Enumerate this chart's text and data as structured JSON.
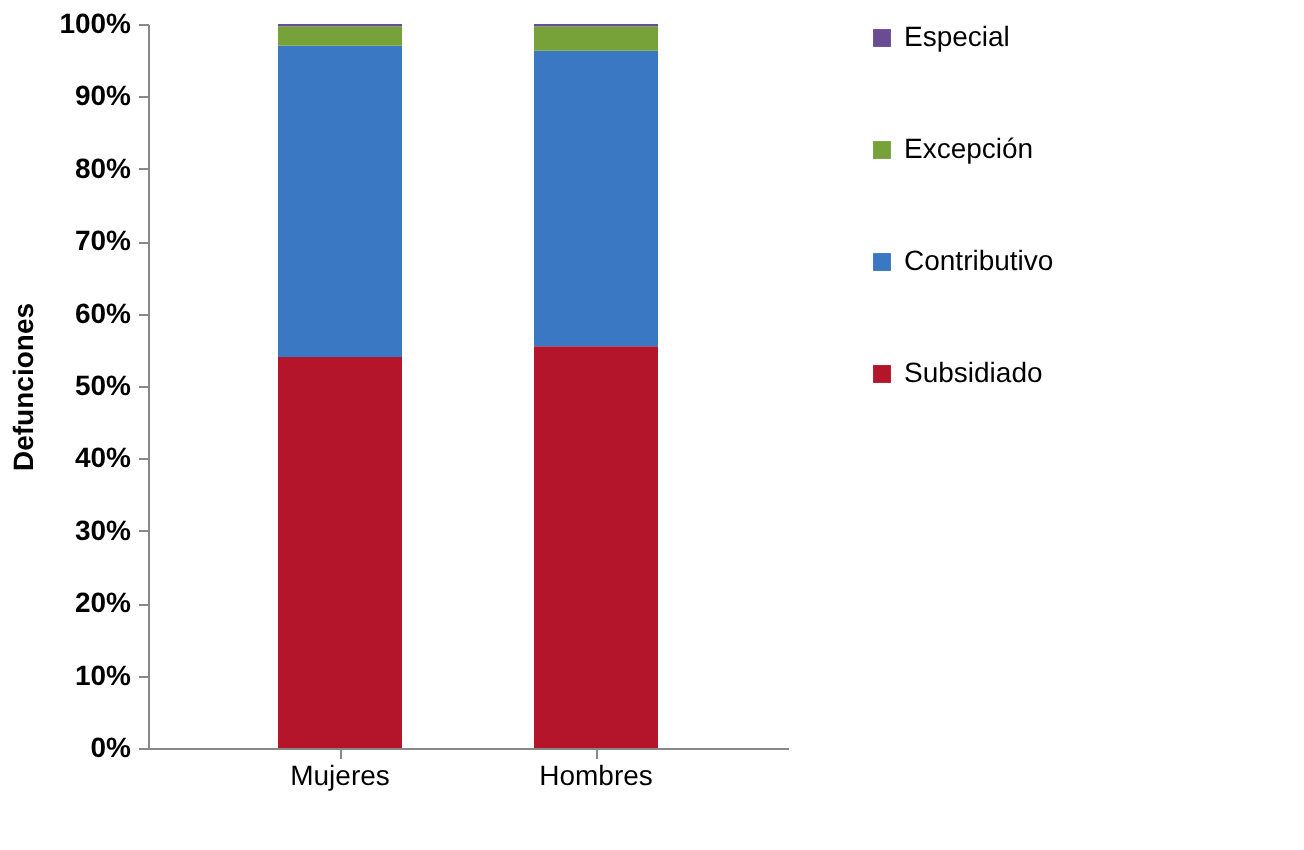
{
  "chart_data": {
    "type": "bar",
    "stacked": true,
    "ylabel": "Defunciones",
    "categories": [
      "Mujeres",
      "Hombres"
    ],
    "series": [
      {
        "name": "Subsidiado",
        "color": "#b5152b",
        "values": [
          54,
          55.5
        ]
      },
      {
        "name": "Contributivo",
        "color": "#3b78c4",
        "values": [
          43,
          40.8
        ]
      },
      {
        "name": "Excepción",
        "color": "#77a23a",
        "values": [
          2.7,
          3.4
        ]
      },
      {
        "name": "Especial",
        "color": "#6a4c93",
        "values": [
          0.3,
          0.3
        ]
      }
    ],
    "ylim": [
      0,
      100
    ],
    "yticks": [
      {
        "value": 0,
        "label": "0%"
      },
      {
        "value": 10,
        "label": "10%"
      },
      {
        "value": 20,
        "label": "20%"
      },
      {
        "value": 30,
        "label": "30%"
      },
      {
        "value": 40,
        "label": "40%"
      },
      {
        "value": 50,
        "label": "50%"
      },
      {
        "value": 60,
        "label": "60%"
      },
      {
        "value": 70,
        "label": "70%"
      },
      {
        "value": 80,
        "label": "80%"
      },
      {
        "value": 90,
        "label": "90%"
      },
      {
        "value": 100,
        "label": "100%"
      }
    ],
    "grid": false,
    "legend": "right"
  }
}
